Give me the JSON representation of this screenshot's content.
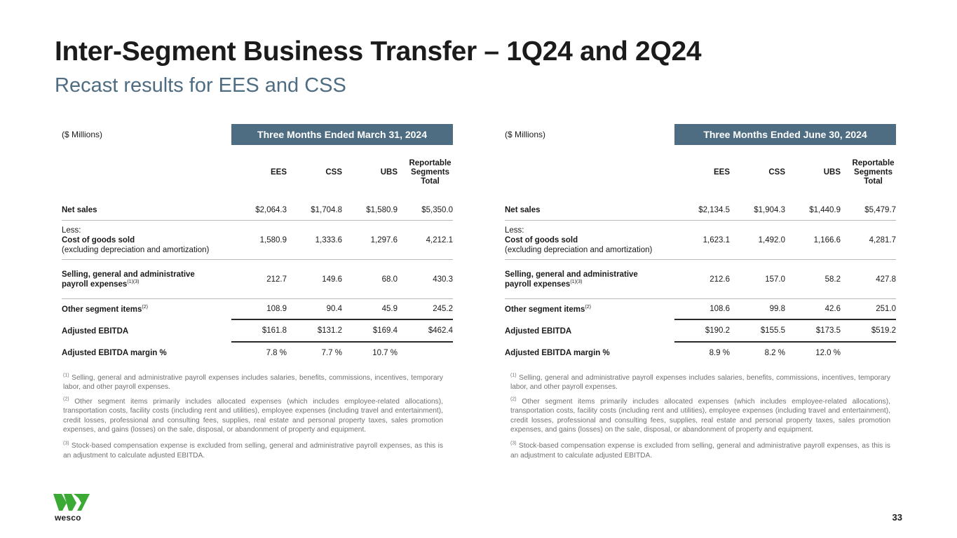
{
  "header": {
    "title": "Inter-Segment Business Transfer – 1Q24 and 2Q24",
    "subtitle": "Recast results for EES and CSS"
  },
  "columns": {
    "ees": "EES",
    "css": "CSS",
    "ubs": "UBS",
    "total": "Reportable Segments Total"
  },
  "row_labels": {
    "net_sales": "Net sales",
    "less": "Less:",
    "cogs": "Cost of goods sold",
    "cogs_note": "(excluding depreciation and amortization)",
    "sga_line1": "Selling, general and administrative",
    "sga_line2": "payroll expenses",
    "sga_sup": "(1)(3)",
    "other": "Other segment items",
    "other_sup": "(2)",
    "ebitda": "Adjusted EBITDA",
    "margin": "Adjusted EBITDA margin %"
  },
  "q1": {
    "unit": "($ Millions)",
    "period": "Three Months Ended March 31, 2024",
    "net_sales": [
      "$2,064.3",
      "$1,704.8",
      "$1,580.9",
      "$5,350.0"
    ],
    "cogs": [
      "1,580.9",
      "1,333.6",
      "1,297.6",
      "4,212.1"
    ],
    "sga": [
      "212.7",
      "149.6",
      "68.0",
      "430.3"
    ],
    "other": [
      "108.9",
      "90.4",
      "45.9",
      "245.2"
    ],
    "ebitda": [
      "$161.8",
      "$131.2",
      "$169.4",
      "$462.4"
    ],
    "margin": [
      "7.8 %",
      "7.7 %",
      "10.7 %",
      ""
    ]
  },
  "q2": {
    "unit": "($ Millions)",
    "period": "Three Months Ended June 30, 2024",
    "net_sales": [
      "$2,134.5",
      "$1,904.3",
      "$1,440.9",
      "$5,479.7"
    ],
    "cogs": [
      "1,623.1",
      "1,492.0",
      "1,166.6",
      "4,281.7"
    ],
    "sga": [
      "212.6",
      "157.0",
      "58.2",
      "427.8"
    ],
    "other": [
      "108.6",
      "99.8",
      "42.6",
      "251.0"
    ],
    "ebitda": [
      "$190.2",
      "$155.5",
      "$173.5",
      "$519.2"
    ],
    "margin": [
      "8.9 %",
      "8.2 %",
      "12.0 %",
      ""
    ]
  },
  "footnotes": {
    "n1_mark": "(1)",
    "n1": "Selling, general and administrative payroll expenses includes salaries, benefits, commissions, incentives, temporary labor, and other payroll expenses.",
    "n2_mark": "(2)",
    "n2": "Other segment items primarily includes allocated expenses (which includes employee-related allocations), transportation costs, facility costs (including rent and utilities), employee expenses (including travel and entertainment), credit losses, professional and consulting fees, supplies, real estate and personal property taxes, sales promotion expenses, and gains (losses) on the sale, disposal, or abandonment of property and equipment.",
    "n3_mark": "(3)",
    "n3": "Stock-based compensation expense is excluded from selling, general and administrative payroll expenses, as this is an adjustment to calculate adjusted EBITDA."
  },
  "brand": {
    "logo_icon": "wesco-w-logo-icon",
    "wordmark": "wesco",
    "color": "#3aaa35"
  },
  "footer": {
    "page_number": "33"
  }
}
